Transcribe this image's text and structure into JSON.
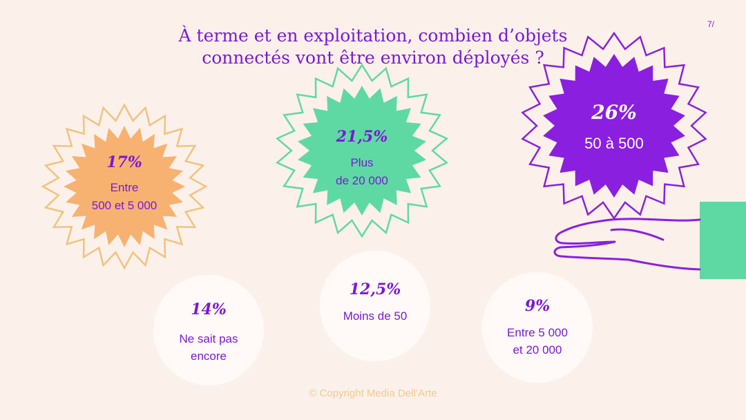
{
  "page": {
    "title_line1": "À terme et en exploitation, combien d’objets",
    "title_line2": "connectés vont être environ déployés ?",
    "page_number": "7/",
    "footer": "© Copyright Media Dell’Arte"
  },
  "chart_data": {
    "type": "pie",
    "title": "À terme et en exploitation, combien d’objets connectés vont être environ déployés ?",
    "unit": "%",
    "categories": [
      "Entre 500 et 5 000",
      "Plus de 20 000",
      "50 à 500",
      "Ne sait pas encore",
      "Moins de 50",
      "Entre 5 000 et 20 000"
    ],
    "values": [
      17,
      21.5,
      26,
      14,
      12.5,
      9
    ],
    "items": [
      {
        "id": "entre-500-5000",
        "pct": "17%",
        "label_lines": [
          "Entre",
          "500 et 5 000"
        ],
        "value": 17,
        "shape": "starburst",
        "fill": "#f7b271",
        "stroke": "#f2c27f",
        "pct_color": "#7a18d6",
        "label_color": "#7a18d6"
      },
      {
        "id": "plus-20000",
        "pct": "21,5%",
        "label_lines": [
          "Plus",
          "de 20 000"
        ],
        "value": 21.5,
        "shape": "starburst",
        "fill": "#5fd9a3",
        "stroke": "#5fd9a3",
        "pct_color": "#7a18d6",
        "label_color": "#7a18d6"
      },
      {
        "id": "50-500",
        "pct": "26%",
        "label_lines": [
          "50 à 500"
        ],
        "value": 26,
        "shape": "starburst",
        "fill": "#8a1fe0",
        "stroke": "#8a1fe0",
        "pct_color": "#ffffff",
        "label_color": "#ffffff"
      },
      {
        "id": "ne-sait-pas",
        "pct": "14%",
        "label_lines": [
          "Ne sait pas",
          "encore"
        ],
        "value": 14,
        "shape": "circle",
        "fill": "#fffaf7",
        "pct_color": "#7a18d6",
        "label_color": "#7a18d6"
      },
      {
        "id": "moins-50",
        "pct": "12,5%",
        "label_lines": [
          "Moins de 50"
        ],
        "value": 12.5,
        "shape": "circle",
        "fill": "#fffaf7",
        "pct_color": "#7a18d6",
        "label_color": "#7a18d6"
      },
      {
        "id": "entre-5000-20000",
        "pct": "9%",
        "label_lines": [
          "Entre 5 000",
          "et 20 000"
        ],
        "value": 9,
        "shape": "circle",
        "fill": "#fffaf7",
        "pct_color": "#7a18d6",
        "label_color": "#7a18d6"
      }
    ]
  },
  "colors": {
    "background": "#fbf1ea",
    "accent_purple": "#7a18d6",
    "sleeve_green": "#5fd9a3"
  },
  "icons": [
    "open-hand-icon"
  ]
}
